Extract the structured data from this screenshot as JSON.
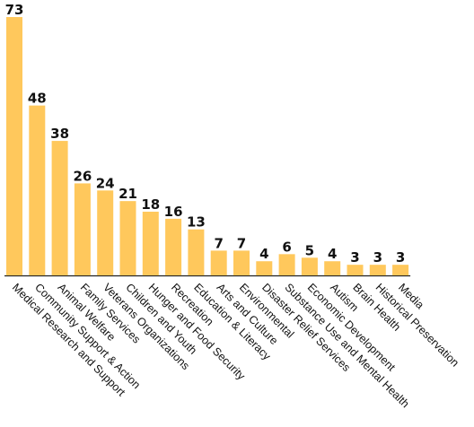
{
  "chart_data": {
    "type": "bar",
    "title": "",
    "xlabel": "",
    "ylabel": "",
    "ylim": [
      0,
      73
    ],
    "grid": false,
    "bar_color": "#ffc85c",
    "categories": [
      "Medical Research and Support",
      "Community Support & Action",
      "Animal Welfare",
      "Family Services",
      "Veterans Organizations",
      "Children and Youth",
      "Hunger and Food Security",
      "Recreation",
      "Education & Literacy",
      "Arts and Culture",
      "Environmental",
      "Disaster Relief Services",
      "Substance Use and Mental Health",
      "Economic Development",
      "Autism",
      "Brain Health",
      "Historical Preservation",
      "Media"
    ],
    "values": [
      73,
      48,
      38,
      26,
      24,
      21,
      18,
      16,
      13,
      7,
      7,
      4,
      6,
      5,
      4,
      3,
      3,
      3
    ],
    "value_labels": [
      "73",
      "48",
      "38",
      "26",
      "24",
      "21",
      "18",
      "16",
      "13",
      "7",
      "7",
      "4",
      "6",
      "5",
      "4",
      "3",
      "3",
      "3"
    ]
  }
}
